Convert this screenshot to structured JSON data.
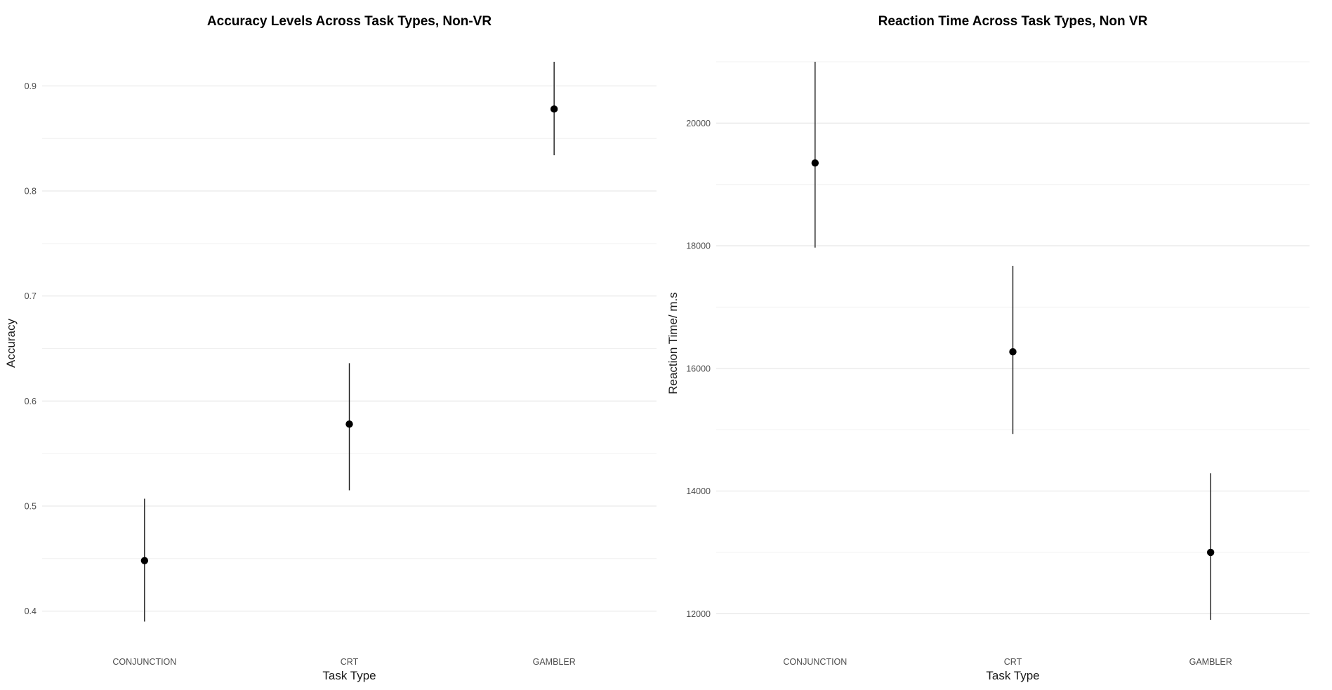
{
  "chart_data": [
    {
      "type": "scatter",
      "title": "Accuracy Levels Across Task Types, Non-VR",
      "xlabel": "Task Type",
      "ylabel": "Accuracy",
      "categories": [
        "CONJUNCTION",
        "CRT",
        "GAMBLER"
      ],
      "values": [
        0.448,
        0.578,
        0.878
      ],
      "error_low": [
        0.39,
        0.515,
        0.834
      ],
      "error_high": [
        0.507,
        0.636,
        0.923
      ],
      "ylim": [
        0.387,
        0.923
      ],
      "yticks": [
        0.4,
        0.5,
        0.6,
        0.7,
        0.8,
        0.9
      ],
      "ytick_labels": [
        "0.4",
        "0.5",
        "0.6",
        "0.7",
        "0.8",
        "0.9"
      ],
      "grid": true,
      "legend": "none"
    },
    {
      "type": "scatter",
      "title": "Reaction Time Across Task Types, Non VR",
      "xlabel": "Task Type",
      "ylabel": "Reaction Time/ m.s",
      "categories": [
        "CONJUNCTION",
        "CRT",
        "GAMBLER"
      ],
      "values": [
        19350,
        16270,
        13000
      ],
      "error_low": [
        17970,
        14930,
        11900
      ],
      "error_high": [
        21000,
        17670,
        14290
      ],
      "ylim": [
        11820,
        21000
      ],
      "yticks": [
        12000,
        14000,
        16000,
        18000,
        20000
      ],
      "ytick_labels": [
        "12000",
        "14000",
        "16000",
        "18000",
        "20000"
      ],
      "grid": true,
      "legend": "none"
    }
  ]
}
